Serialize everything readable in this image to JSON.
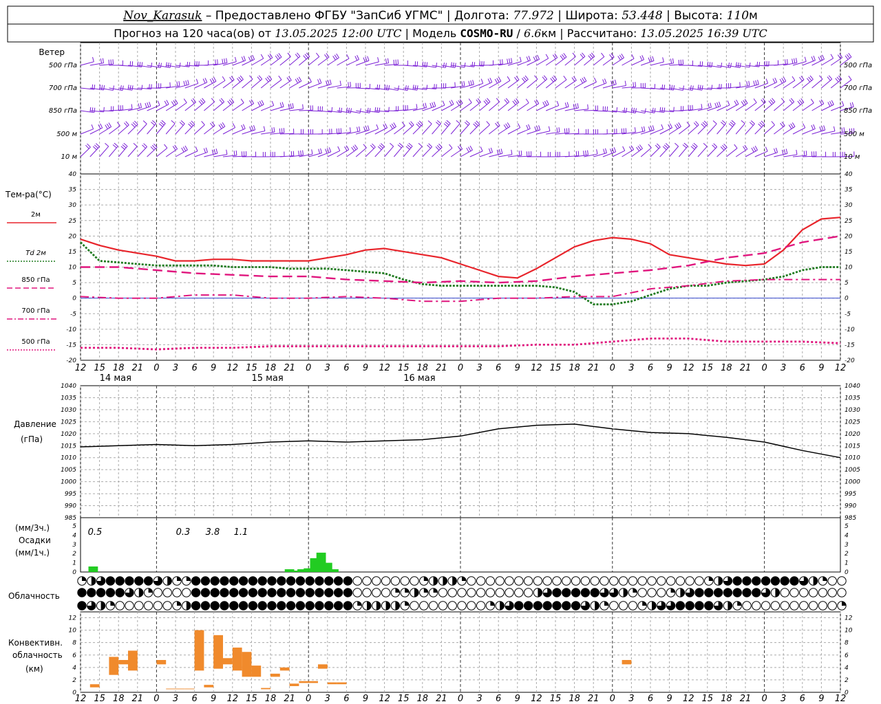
{
  "header": {
    "station": "Nov_Karasuk",
    "provider": "Предоставлено ФГБУ \"ЗапСиб УГМС\"",
    "lon_label": "Долгота:",
    "lon_value": "77.972",
    "lat_label": "Широта:",
    "lat_value": "53.448",
    "alt_label": "Высота:",
    "alt_value": "110",
    "alt_unit": "м",
    "forecast_text": "Прогноз на 120 часа(ов) от",
    "forecast_start": "13.05.2025 12:00 UTC",
    "model_label": "Модель",
    "model_name": "COSMO-RU",
    "model_res_value": "6.6",
    "model_res_unit": "км",
    "calc_label": "Рассчитано:",
    "calc_time": "13.05.2025 16:39 UTC"
  },
  "wind_panel": {
    "title": "Ветер",
    "levels": [
      "500 гПа",
      "700 гПа",
      "850 гПа",
      "500 м",
      "10 м"
    ],
    "color": "#7b1fd6"
  },
  "temp_panel": {
    "title": "Тем-ра(°C)",
    "legend": [
      {
        "label": "2м",
        "color": "#e8242b",
        "style": "solid"
      },
      {
        "label": "Td 2м",
        "color": "#1e7a1e",
        "style": "dotted"
      },
      {
        "label": "850 гПа",
        "color": "#e0157d",
        "style": "dashed"
      },
      {
        "label": "700 гПа",
        "color": "#e0157d",
        "style": "dashdot"
      },
      {
        "label": "500 гПа",
        "color": "#e0157d",
        "style": "dotted"
      }
    ],
    "y_ticks": [
      "40",
      "35",
      "30",
      "25",
      "20",
      "15",
      "10",
      "5",
      "0",
      "-5",
      "-10",
      "-15",
      "-20"
    ]
  },
  "x_axis": {
    "hour_labels": [
      "12",
      "15",
      "18",
      "21",
      "0",
      "3",
      "6",
      "9",
      "12",
      "15",
      "18",
      "21",
      "0",
      "3",
      "6",
      "9",
      "12",
      "15",
      "18",
      "21",
      "0",
      "3",
      "6",
      "9",
      "12",
      "15",
      "18"
    ],
    "day_labels": [
      "14 мая",
      "15 мая",
      "16 мая"
    ]
  },
  "pressure_panel": {
    "title": "Давление",
    "unit": "(гПа)",
    "y_ticks": [
      "1040",
      "1035",
      "1030",
      "1025",
      "1020",
      "1015",
      "1010",
      "1005",
      "1000",
      "995",
      "990",
      "985"
    ]
  },
  "precip_panel": {
    "unit_3h": "(мм/3ч.)",
    "title": "Осадки",
    "unit_1h": "(мм/1ч.)",
    "totals": [
      {
        "hour": 3,
        "text": "0.5"
      },
      {
        "hour": 33,
        "text": "0.3"
      },
      {
        "hour": 39,
        "text": "3.8"
      },
      {
        "hour": 45,
        "text": "1.1"
      }
    ],
    "y_ticks": [
      "5",
      "4",
      "3",
      "2",
      "1",
      "0"
    ],
    "bar_color": "#22cc22"
  },
  "cloud_panel": {
    "title": "Облачность"
  },
  "conv_panel": {
    "title_1": "Конвективн.",
    "title_2": "облачность",
    "unit": "(км)",
    "y_ticks": [
      "12",
      "10",
      "8",
      "6",
      "4",
      "2",
      "0"
    ],
    "bar_color": "#f08a2c"
  },
  "chart_data": [
    {
      "type": "line",
      "title": "Тем-ра(°C)",
      "x_unit": "hours since 13.05.2025 12:00 UTC",
      "ylim": [
        -20,
        40
      ],
      "series": [
        {
          "name": "2м",
          "x": [
            0,
            3,
            6,
            9,
            12,
            15,
            18,
            21,
            24,
            27,
            30,
            33,
            36,
            39,
            42,
            45,
            48,
            51,
            54,
            57,
            60,
            63,
            66,
            69,
            72,
            75,
            78,
            81,
            84,
            87,
            90,
            93,
            96,
            99,
            102,
            105,
            108,
            111,
            114,
            117,
            120
          ],
          "values": [
            19,
            17,
            15.5,
            14.5,
            13.5,
            12,
            12,
            12.5,
            12.5,
            12,
            12,
            12,
            12,
            13,
            14,
            15.5,
            16,
            15,
            14,
            13,
            11,
            9,
            7,
            6.5,
            9.5,
            13,
            16.5,
            18.5,
            19.5,
            19,
            17.5,
            14,
            13,
            12,
            11,
            10.5,
            11,
            15.5,
            22,
            25.5,
            26
          ]
        },
        {
          "name": "Td 2м",
          "x": [
            0,
            3,
            6,
            9,
            12,
            15,
            18,
            21,
            24,
            27,
            30,
            33,
            36,
            39,
            42,
            45,
            48,
            51,
            54,
            57,
            60,
            63,
            66,
            69,
            72,
            75,
            78,
            81,
            84,
            87,
            90,
            93,
            96,
            99,
            102,
            105,
            108,
            111,
            114,
            117,
            120
          ],
          "values": [
            18,
            12,
            11.5,
            11,
            10.5,
            10.5,
            10.5,
            10.5,
            10,
            10,
            10,
            9.5,
            9.5,
            9.5,
            9,
            8.5,
            8,
            6,
            4.5,
            4,
            4,
            4,
            4,
            4,
            4,
            3.5,
            2,
            -2,
            -2,
            -1,
            1,
            3,
            4,
            4,
            5,
            5.5,
            6,
            7,
            9,
            10,
            10
          ]
        },
        {
          "name": "850 гПа",
          "x": [
            0,
            6,
            12,
            18,
            24,
            30,
            36,
            42,
            48,
            54,
            60,
            66,
            72,
            78,
            84,
            90,
            96,
            102,
            108,
            114,
            120
          ],
          "values": [
            10,
            10,
            9,
            8,
            7.5,
            7,
            7,
            6,
            5.5,
            5,
            5.5,
            5,
            5.5,
            7,
            8,
            9,
            10.5,
            13,
            14.5,
            18,
            20
          ]
        },
        {
          "name": "700 гПа",
          "x": [
            0,
            6,
            12,
            18,
            24,
            30,
            36,
            42,
            48,
            54,
            60,
            66,
            72,
            78,
            84,
            90,
            96,
            102,
            108,
            114,
            120
          ],
          "values": [
            0.5,
            0,
            0,
            1,
            1,
            0,
            0,
            0.5,
            0,
            -1,
            -1,
            0,
            0,
            0.5,
            0.5,
            3,
            4,
            5.5,
            6,
            6,
            6
          ]
        },
        {
          "name": "500 гПа",
          "x": [
            0,
            6,
            12,
            18,
            24,
            30,
            36,
            42,
            48,
            54,
            60,
            66,
            72,
            78,
            84,
            90,
            96,
            102,
            108,
            114,
            120
          ],
          "values": [
            -16,
            -16,
            -16.5,
            -16,
            -16,
            -15.5,
            -15.5,
            -15.5,
            -15.5,
            -15.5,
            -15.5,
            -15.5,
            -15,
            -15,
            -14,
            -13,
            -13,
            -14,
            -14,
            -14,
            -14.5
          ]
        }
      ]
    },
    {
      "type": "line",
      "title": "Давление",
      "ylabel": "(гПа)",
      "ylim": [
        985,
        1040
      ],
      "series": [
        {
          "name": "Давление",
          "x": [
            0,
            6,
            12,
            18,
            24,
            30,
            36,
            42,
            48,
            54,
            60,
            66,
            72,
            78,
            84,
            90,
            96,
            102,
            108,
            114,
            120
          ],
          "values": [
            1014.5,
            1015,
            1015.5,
            1015,
            1015.5,
            1016.5,
            1017,
            1016.5,
            1017,
            1017.5,
            1019,
            1022,
            1023.5,
            1024,
            1022,
            1020.5,
            1020,
            1018.5,
            1016.5,
            1013,
            1010
          ]
        }
      ]
    },
    {
      "type": "bar",
      "title": "Осадки",
      "ylabel": "(мм/1ч.)",
      "ylim": [
        0,
        5
      ],
      "x": [
        2,
        33,
        34,
        35,
        36,
        37,
        38,
        39,
        40
      ],
      "values": [
        0.6,
        0.3,
        0.15,
        0.3,
        0.4,
        1.5,
        2.1,
        1.0,
        0.3
      ]
    },
    {
      "type": "bar",
      "title": "Конвективн. облачность",
      "ylabel": "(км)",
      "ylim": [
        0,
        12
      ],
      "intervals": [
        {
          "x": 1,
          "base": 0.8,
          "top": 1.3
        },
        {
          "x": 3,
          "base": 2.8,
          "top": 5.7
        },
        {
          "x": 4,
          "base": 4.5,
          "top": 5.2
        },
        {
          "x": 5,
          "base": 3.5,
          "top": 6.7
        },
        {
          "x": 8,
          "base": 4.5,
          "top": 5.2
        },
        {
          "x": 9,
          "base": 0.5,
          "top": 0.6
        },
        {
          "x": 10,
          "base": 0.5,
          "top": 0.6
        },
        {
          "x": 11,
          "base": 0.5,
          "top": 0.6
        },
        {
          "x": 12,
          "base": 3.5,
          "top": 10
        },
        {
          "x": 13,
          "base": 0.8,
          "top": 1.2
        },
        {
          "x": 14,
          "base": 3.8,
          "top": 9.2
        },
        {
          "x": 15,
          "base": 4.5,
          "top": 5.5
        },
        {
          "x": 16,
          "base": 3.5,
          "top": 7.2
        },
        {
          "x": 17,
          "base": 2.5,
          "top": 6.5
        },
        {
          "x": 18,
          "base": 2.5,
          "top": 4.3
        },
        {
          "x": 19,
          "base": 0.5,
          "top": 0.7
        },
        {
          "x": 20,
          "base": 2.5,
          "top": 3.0
        },
        {
          "x": 21,
          "base": 3.5,
          "top": 4.0
        },
        {
          "x": 22,
          "base": 1.0,
          "top": 1.4
        },
        {
          "x": 23,
          "base": 1.5,
          "top": 1.8
        },
        {
          "x": 24,
          "base": 1.5,
          "top": 1.8
        },
        {
          "x": 25,
          "base": 3.8,
          "top": 4.5
        },
        {
          "x": 26,
          "base": 1.3,
          "top": 1.6
        },
        {
          "x": 27,
          "base": 1.3,
          "top": 1.6
        },
        {
          "x": 57,
          "base": 4.5,
          "top": 5.2
        }
      ]
    }
  ]
}
